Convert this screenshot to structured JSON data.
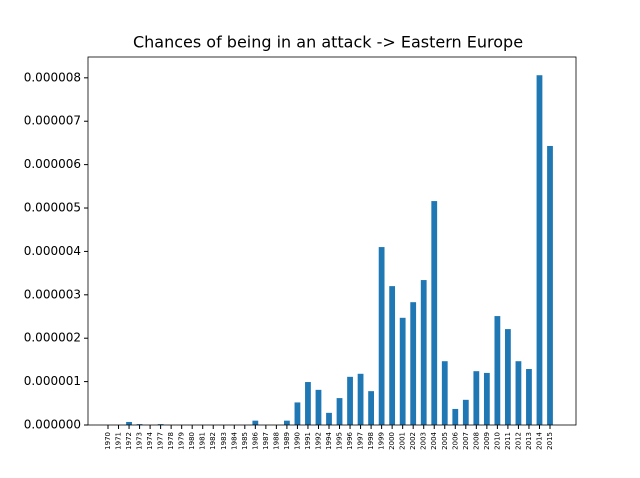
{
  "chart_data": {
    "type": "bar",
    "title": "Chances of being in an attack -> Eastern Europe",
    "categories": [
      "1970",
      "1971",
      "1972",
      "1973",
      "1974",
      "1977",
      "1978",
      "1979",
      "1980",
      "1981",
      "1982",
      "1983",
      "1984",
      "1985",
      "1986",
      "1987",
      "1988",
      "1989",
      "1990",
      "1991",
      "1992",
      "1994",
      "1995",
      "1996",
      "1997",
      "1998",
      "1999",
      "2000",
      "2001",
      "2002",
      "2003",
      "2004",
      "2005",
      "2006",
      "2007",
      "2008",
      "2009",
      "2010",
      "2011",
      "2012",
      "2013",
      "2014",
      "2015"
    ],
    "values": [
      0,
      0,
      7e-08,
      2e-08,
      0,
      2e-08,
      0,
      0,
      0,
      0,
      0,
      0,
      0,
      0,
      1e-07,
      0,
      0,
      1e-07,
      5.2e-07,
      9.9e-07,
      8.1e-07,
      2.8e-07,
      6.2e-07,
      1.11e-06,
      1.18e-06,
      7.8e-07,
      4.1e-06,
      3.2e-06,
      2.47e-06,
      2.83e-06,
      3.34e-06,
      5.16e-06,
      1.47e-06,
      3.7e-07,
      5.8e-07,
      1.24e-06,
      1.2e-06,
      2.51e-06,
      2.21e-06,
      1.47e-06,
      1.29e-06,
      8.06e-06,
      6.43e-06
    ],
    "color": "#1f77b4",
    "ylim": [
      0,
      8.48e-06
    ],
    "yticks": [
      {
        "value": 0,
        "label": "0.000000"
      },
      {
        "value": 1e-06,
        "label": "0.000001"
      },
      {
        "value": 2e-06,
        "label": "0.000002"
      },
      {
        "value": 3e-06,
        "label": "0.000003"
      },
      {
        "value": 4e-06,
        "label": "0.000004"
      },
      {
        "value": 5e-06,
        "label": "0.000005"
      },
      {
        "value": 6e-06,
        "label": "0.000006"
      },
      {
        "value": 7e-06,
        "label": "0.000007"
      },
      {
        "value": 8e-06,
        "label": "0.000008"
      }
    ],
    "grid": false
  }
}
